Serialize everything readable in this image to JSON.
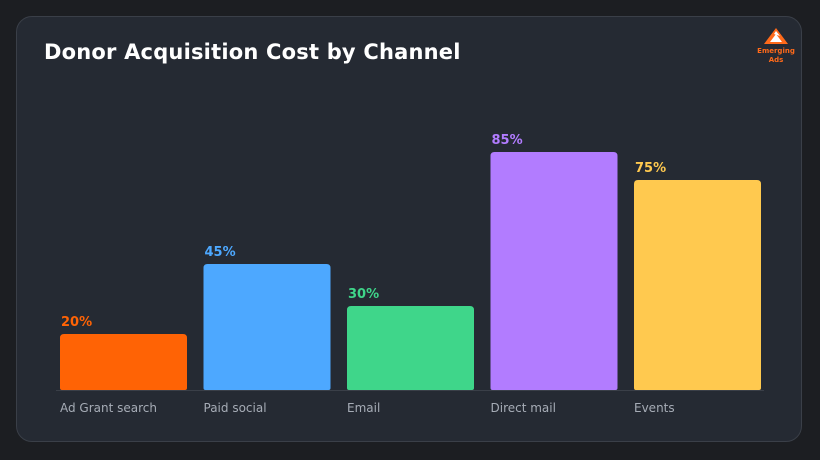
{
  "title": "Donor Acquisition Cost by Channel",
  "logo": {
    "line1": "Emerging",
    "line2": "Ads",
    "color": "#ff6a1a",
    "icon": "mountain-logo-icon"
  },
  "chart_data": {
    "type": "bar",
    "title": "Donor Acquisition Cost by Channel",
    "xlabel": "",
    "ylabel": "",
    "ylim": [
      0,
      100
    ],
    "categories": [
      "Ad Grant search",
      "Paid social",
      "Email",
      "Direct mail",
      "Events"
    ],
    "values": [
      20,
      45,
      30,
      85,
      75
    ],
    "value_labels": [
      "20%",
      "45%",
      "30%",
      "85%",
      "75%"
    ],
    "colors": [
      "#ff6305",
      "#4da8ff",
      "#3fd68a",
      "#b27cff",
      "#ffc94f"
    ],
    "grid": false,
    "legend": "none"
  }
}
